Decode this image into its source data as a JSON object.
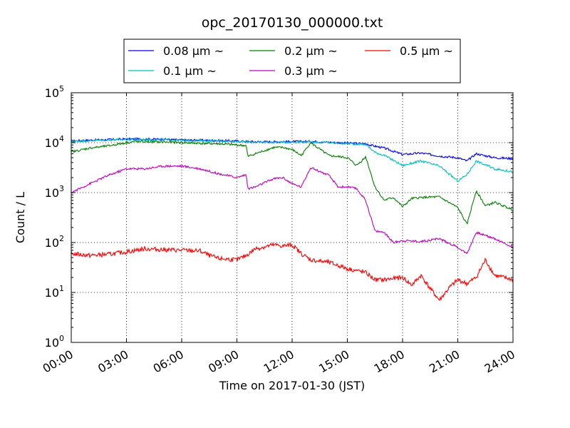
{
  "chart_data": {
    "type": "line",
    "title": "opc_20170130_000000.txt",
    "xlabel": "Time on 2017-01-30 (JST)",
    "ylabel": "Count / L",
    "x_unit": "hour",
    "xlim": [
      0,
      24
    ],
    "ylim": [
      1,
      100000
    ],
    "yscale": "log",
    "grid": true,
    "legend_position": "top-center",
    "x_ticks": [
      {
        "value": 0,
        "label": "00:00"
      },
      {
        "value": 3,
        "label": "03:00"
      },
      {
        "value": 6,
        "label": "06:00"
      },
      {
        "value": 9,
        "label": "09:00"
      },
      {
        "value": 12,
        "label": "12:00"
      },
      {
        "value": 15,
        "label": "15:00"
      },
      {
        "value": 18,
        "label": "18:00"
      },
      {
        "value": 21,
        "label": "21:00"
      },
      {
        "value": 24,
        "label": "24:00"
      }
    ],
    "y_ticks": [
      {
        "value": 1,
        "base": "10",
        "exp": "0"
      },
      {
        "value": 10,
        "base": "10",
        "exp": "1"
      },
      {
        "value": 100,
        "base": "10",
        "exp": "2"
      },
      {
        "value": 1000,
        "base": "10",
        "exp": "3"
      },
      {
        "value": 10000,
        "base": "10",
        "exp": "4"
      },
      {
        "value": 100000,
        "base": "10",
        "exp": "5"
      }
    ],
    "series": [
      {
        "name": "0.08 μm ~",
        "color": "#0000ff",
        "x": [
          0,
          1,
          2,
          3,
          4,
          5,
          6,
          7,
          8,
          9,
          9.5,
          10,
          11,
          12,
          13,
          14,
          15,
          16,
          16.5,
          17,
          18,
          19,
          20,
          21,
          21.5,
          22,
          23,
          24
        ],
        "values": [
          10800,
          11200,
          11500,
          11800,
          11800,
          11700,
          11300,
          11200,
          11000,
          10800,
          10600,
          10400,
          10400,
          10500,
          10600,
          10200,
          9800,
          9500,
          8500,
          7800,
          5800,
          6200,
          5400,
          5000,
          4300,
          6000,
          5000,
          4800
        ]
      },
      {
        "name": "0.1 μm ~",
        "color": "#00bfbf",
        "x": [
          0,
          1,
          2,
          3,
          4,
          5,
          6,
          7,
          8,
          9,
          9.5,
          10,
          11,
          12,
          13,
          14,
          15,
          16,
          16.5,
          17,
          18,
          19,
          20,
          21,
          21.5,
          22,
          23,
          24
        ],
        "values": [
          10600,
          11000,
          11300,
          11600,
          11600,
          11500,
          11100,
          11000,
          10800,
          10600,
          10400,
          10200,
          10200,
          10300,
          10400,
          10000,
          9600,
          9200,
          6400,
          5600,
          3500,
          4300,
          3400,
          1700,
          2300,
          4300,
          3000,
          2600
        ]
      },
      {
        "name": "0.2 μm ~",
        "color": "#008000",
        "x": [
          0,
          1,
          2,
          3,
          3.5,
          4,
          5,
          6,
          7,
          8,
          9,
          9.5,
          9.6,
          10,
          11,
          11.5,
          12,
          12.5,
          13,
          14,
          15,
          15.5,
          16,
          16.5,
          17,
          17.5,
          18,
          18.5,
          19,
          20,
          21,
          21.5,
          22,
          22.5,
          23,
          24
        ],
        "values": [
          6500,
          7800,
          8600,
          10000,
          10500,
          10500,
          10300,
          10000,
          9700,
          9500,
          9000,
          8700,
          5300,
          6000,
          8000,
          8000,
          7300,
          5500,
          10000,
          5500,
          5000,
          3500,
          5200,
          1300,
          700,
          800,
          520,
          760,
          800,
          820,
          500,
          230,
          1100,
          540,
          640,
          450
        ]
      },
      {
        "name": "0.3 μm ~",
        "color": "#bf00bf",
        "x": [
          0,
          1,
          2,
          3,
          4,
          5,
          6,
          7,
          8,
          9,
          9.5,
          9.6,
          10,
          11,
          11.5,
          12,
          12.5,
          13,
          14,
          14.5,
          15,
          15.5,
          16,
          16.5,
          17,
          17.5,
          18,
          19,
          20,
          21,
          21.5,
          22,
          23,
          24
        ],
        "values": [
          1000,
          1500,
          2200,
          3000,
          3000,
          3400,
          3400,
          3000,
          2400,
          2000,
          2300,
          1200,
          1300,
          1900,
          2000,
          1500,
          1300,
          3200,
          2200,
          1300,
          1300,
          1200,
          700,
          170,
          160,
          100,
          110,
          105,
          120,
          80,
          60,
          160,
          120,
          80
        ]
      },
      {
        "name": "0.5 μm ~",
        "color": "#ff0000",
        "x": [
          0,
          1,
          2,
          3,
          4,
          5,
          6,
          7,
          7.5,
          8,
          9,
          9.5,
          10,
          11,
          11.5,
          12,
          12.5,
          13,
          14,
          15,
          16,
          16.5,
          17,
          18,
          18.5,
          19,
          19.5,
          20,
          20.5,
          21,
          21.5,
          22,
          22.5,
          23,
          24
        ],
        "values": [
          60,
          55,
          58,
          65,
          75,
          72,
          70,
          68,
          55,
          48,
          45,
          55,
          75,
          90,
          85,
          90,
          60,
          45,
          40,
          30,
          25,
          18,
          18,
          20,
          14,
          22,
          12,
          7,
          12,
          18,
          15,
          20,
          45,
          22,
          18
        ]
      }
    ]
  }
}
